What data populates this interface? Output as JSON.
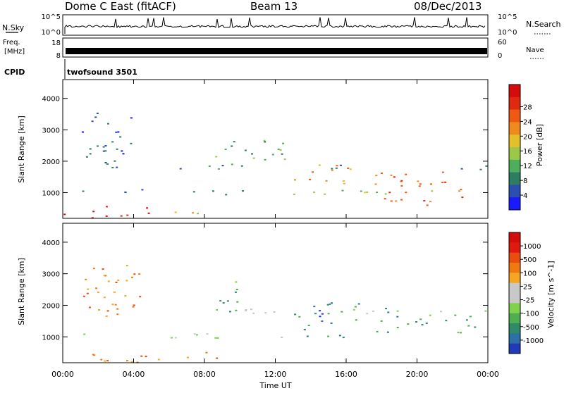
{
  "header": {
    "station": "Dome C East (fitACF)",
    "beam": "Beam 13",
    "date": "08/Dec/2013"
  },
  "top_panels": {
    "nsky_label": "N.Sky",
    "nsky_ticks": [
      "10^5",
      "10^0"
    ],
    "nsearch_label": "N.Search",
    "freq_label": "Freq.",
    "freq_unit": "[MHz]",
    "freq_ticks": [
      "18",
      "8"
    ],
    "nave_label": "Nave",
    "nave_ticks": [
      "60",
      "0"
    ],
    "cpid_label": "CPID",
    "cpid_value": "twofsound 3501"
  },
  "chart_data": [
    {
      "type": "heatmap",
      "title": "",
      "xlabel": "",
      "ylabel": "Slant Range [km]",
      "xlim": [
        0,
        24
      ],
      "ylim": [
        180,
        4600
      ],
      "x_ticks": [
        0,
        4,
        8,
        12,
        16,
        20,
        24
      ],
      "y_ticks": [
        1000,
        2000,
        3000,
        4000
      ],
      "colorbar": {
        "label": "Power [dB]",
        "ticks": [
          "4",
          "8",
          "12",
          "16",
          "20",
          "24",
          "28"
        ],
        "colors": [
          "#1a1aff",
          "#2a4fb0",
          "#2e7d62",
          "#4fae5c",
          "#9cc84a",
          "#e3bf2a",
          "#f08a1e",
          "#ee5a14",
          "#e02a10",
          "#d40c0c"
        ]
      },
      "scatter_regions": [
        {
          "t": [
            0.0,
            5.0
          ],
          "r": [
            200,
            600
          ],
          "level": 9
        },
        {
          "t": [
            5.0,
            8.0
          ],
          "r": [
            250,
            450
          ],
          "level": 5
        },
        {
          "t": [
            0.0,
            10.5
          ],
          "r": [
            950,
            1120
          ],
          "level": 2
        },
        {
          "t": [
            6.0,
            24.0
          ],
          "r": [
            1700,
            1900
          ],
          "level": 2
        },
        {
          "t": [
            13.0,
            16.5
          ],
          "r": [
            1300,
            2000
          ],
          "level": 6
        },
        {
          "t": [
            17.5,
            22.5
          ],
          "r": [
            600,
            1800
          ],
          "level": 7
        },
        {
          "t": [
            13.0,
            24.0
          ],
          "r": [
            950,
            1150
          ],
          "level": 4
        },
        {
          "t": [
            8.0,
            13.0
          ],
          "r": [
            1900,
            2700
          ],
          "level": 3
        },
        {
          "t": [
            1.0,
            4.5
          ],
          "r": [
            1500,
            3600
          ],
          "level": 1
        }
      ]
    },
    {
      "type": "heatmap",
      "title": "",
      "xlabel": "Time UT",
      "ylabel": "Slant Range [km]",
      "xlim": [
        0,
        24
      ],
      "ylim": [
        180,
        4600
      ],
      "x_ticks": [
        0,
        4,
        8,
        12,
        16,
        20,
        24
      ],
      "x_tick_labels": [
        "00:00",
        "04:00",
        "08:00",
        "12:00",
        "16:00",
        "20:00",
        "00:00"
      ],
      "y_ticks": [
        1000,
        2000,
        3000,
        4000
      ],
      "colorbar": {
        "label": "Velocity [m s^-1]",
        "ticks": [
          "1000",
          "500",
          "100",
          "25",
          "-25",
          "-100",
          "-500",
          "-1000"
        ],
        "colors": [
          "#1f3bb8",
          "#2e6fa8",
          "#2f8a6a",
          "#4fae4f",
          "#7fd24a",
          "#c8c8c8",
          "#c8c8c8",
          "#f5a623",
          "#f07a12",
          "#ea4d10",
          "#e01a10",
          "#d40c0c"
        ]
      },
      "scatter_regions": [
        {
          "t": [
            0.0,
            10.0
          ],
          "r": [
            200,
            600
          ],
          "level": 8
        },
        {
          "t": [
            0.0,
            12.5
          ],
          "r": [
            950,
            1120
          ],
          "level": 5
        },
        {
          "t": [
            6.0,
            24.0
          ],
          "r": [
            1700,
            1900
          ],
          "level": 5
        },
        {
          "t": [
            13.0,
            19.5
          ],
          "r": [
            1000,
            2100
          ],
          "level": 2
        },
        {
          "t": [
            14.0,
            16.0
          ],
          "r": [
            1600,
            2000
          ],
          "level": 1
        },
        {
          "t": [
            19.5,
            24.0
          ],
          "r": [
            1000,
            1800
          ],
          "level": 3
        },
        {
          "t": [
            1.0,
            4.5
          ],
          "r": [
            1500,
            3300
          ],
          "level": 8
        },
        {
          "t": [
            8.5,
            10.5
          ],
          "r": [
            1800,
            2800
          ],
          "level": 3
        }
      ]
    }
  ]
}
